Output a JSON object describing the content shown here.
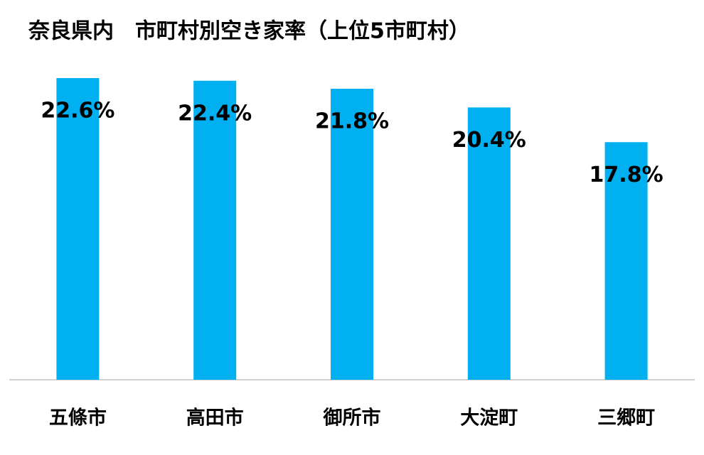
{
  "chart_data": {
    "type": "bar",
    "title": "奈良県内　市町村別空き家率（上位5市町村）",
    "categories": [
      "五條市",
      "高田市",
      "御所市",
      "大淀町",
      "三郷町"
    ],
    "values": [
      22.6,
      22.4,
      21.8,
      20.4,
      17.8
    ],
    "value_labels": [
      "22.6%",
      "22.4%",
      "21.8%",
      "20.4%",
      "17.8%"
    ],
    "color": "#00b0f0"
  }
}
